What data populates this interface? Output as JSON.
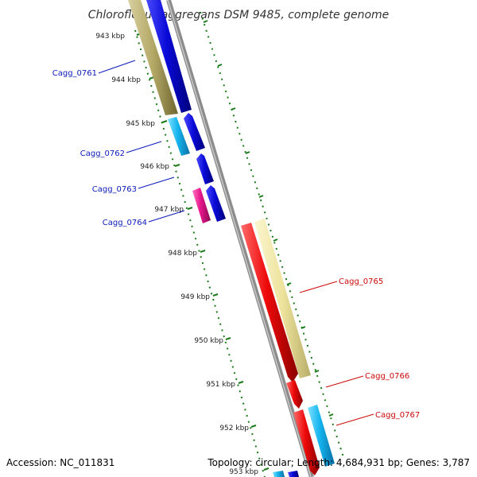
{
  "title": "Chloroflexus aggregans DSM 9485, complete genome",
  "footer": {
    "accession": "Accession: NC_011831",
    "summary": "Topology: circular; Length: 4,684,931 bp; Genes: 3,787"
  },
  "scale_labels": [
    "943 kbp",
    "944 kbp",
    "945 kbp",
    "946 kbp",
    "947 kbp",
    "948 kbp",
    "949 kbp",
    "950 kbp",
    "951 kbp",
    "952 kbp",
    "953 kbp"
  ],
  "colors": {
    "backbone": "#8c8c8c",
    "tick": "#1a7a1a",
    "blue_cds": "#0a0ad8",
    "cyan_cds": "#14b4ee",
    "red_cds": "#ee0a0a",
    "magenta_cds": "#e6168c",
    "olive_cds": "#b3a866",
    "pale_yellow_cds": "#ede39c",
    "left_label": "#0a1ab8",
    "right_label": "#cc0a0a"
  },
  "gene_labels": {
    "left": [
      "Cagg_0761",
      "Cagg_0762",
      "Cagg_0763",
      "Cagg_0764"
    ],
    "right": [
      "Cagg_0765",
      "Cagg_0766",
      "Cagg_0767"
    ]
  }
}
